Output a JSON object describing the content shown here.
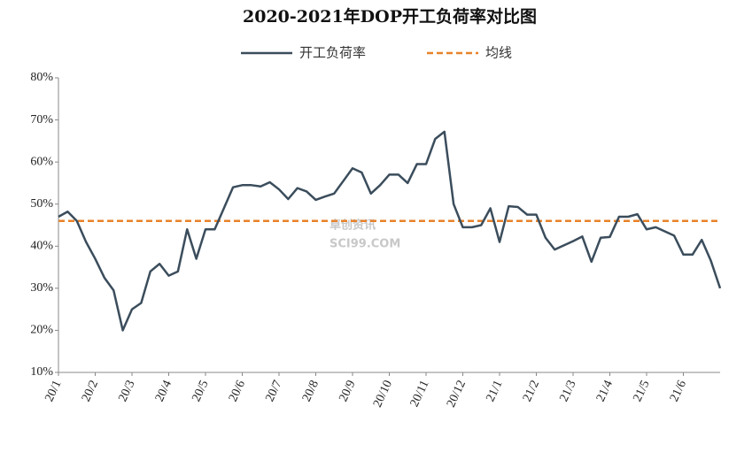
{
  "chart_data": {
    "type": "line",
    "title": "2020-2021年DOP开工负荷率对比图",
    "watermark": [
      "卓创资讯",
      "SCI99.COM"
    ],
    "categories": [
      "20/1",
      null,
      null,
      null,
      "20/2",
      null,
      null,
      null,
      "20/3",
      null,
      null,
      null,
      "20/4",
      null,
      null,
      null,
      "20/5",
      null,
      null,
      null,
      "20/6",
      null,
      null,
      null,
      "20/7",
      null,
      null,
      null,
      "20/8",
      null,
      null,
      null,
      "20/9",
      null,
      null,
      null,
      "20/10",
      null,
      null,
      null,
      "20/11",
      null,
      null,
      null,
      "20/12",
      null,
      null,
      null,
      "21/1",
      null,
      null,
      null,
      "21/2",
      null,
      null,
      null,
      "21/3",
      null,
      null,
      null,
      "21/4",
      null,
      null,
      null,
      "21/5",
      null,
      null,
      null,
      "21/6",
      null,
      null,
      null,
      null
    ],
    "series": [
      {
        "name": "开工负荷率",
        "color": "#3b4d5c",
        "values": [
          47,
          48.2,
          46,
          41,
          37,
          32.5,
          29.5,
          20,
          25,
          26.5,
          34,
          35.8,
          33,
          34,
          44,
          37,
          44,
          44,
          49,
          54,
          54.5,
          54.5,
          54.2,
          55.2,
          53.5,
          51.2,
          53.8,
          53,
          51,
          51.8,
          52.5,
          55.5,
          58.5,
          57.5,
          52.5,
          54.5,
          57,
          57,
          55,
          59.5,
          59.5,
          65.5,
          67.2,
          50,
          44.5,
          44.5,
          45,
          49,
          41,
          49.5,
          49.3,
          47.5,
          47.5,
          42,
          39.2,
          40.2,
          41.2,
          42.3,
          36.3,
          42,
          42.2,
          47,
          47,
          47.6,
          44,
          44.5,
          43.5,
          42.5,
          38,
          38,
          41.5,
          36.5,
          30
        ]
      }
    ],
    "average": {
      "name": "均线",
      "value": 46,
      "color": "#e8822a"
    },
    "ylim": [
      10,
      80
    ],
    "yticks": [
      {
        "value": 10,
        "label": "10%"
      },
      {
        "value": 20,
        "label": "20%"
      },
      {
        "value": 30,
        "label": "30%"
      },
      {
        "value": 40,
        "label": "40%"
      },
      {
        "value": 50,
        "label": "50%"
      },
      {
        "value": 60,
        "label": "60%"
      },
      {
        "value": 70,
        "label": "70%"
      },
      {
        "value": 80,
        "label": "80%"
      }
    ],
    "legend": "top"
  }
}
